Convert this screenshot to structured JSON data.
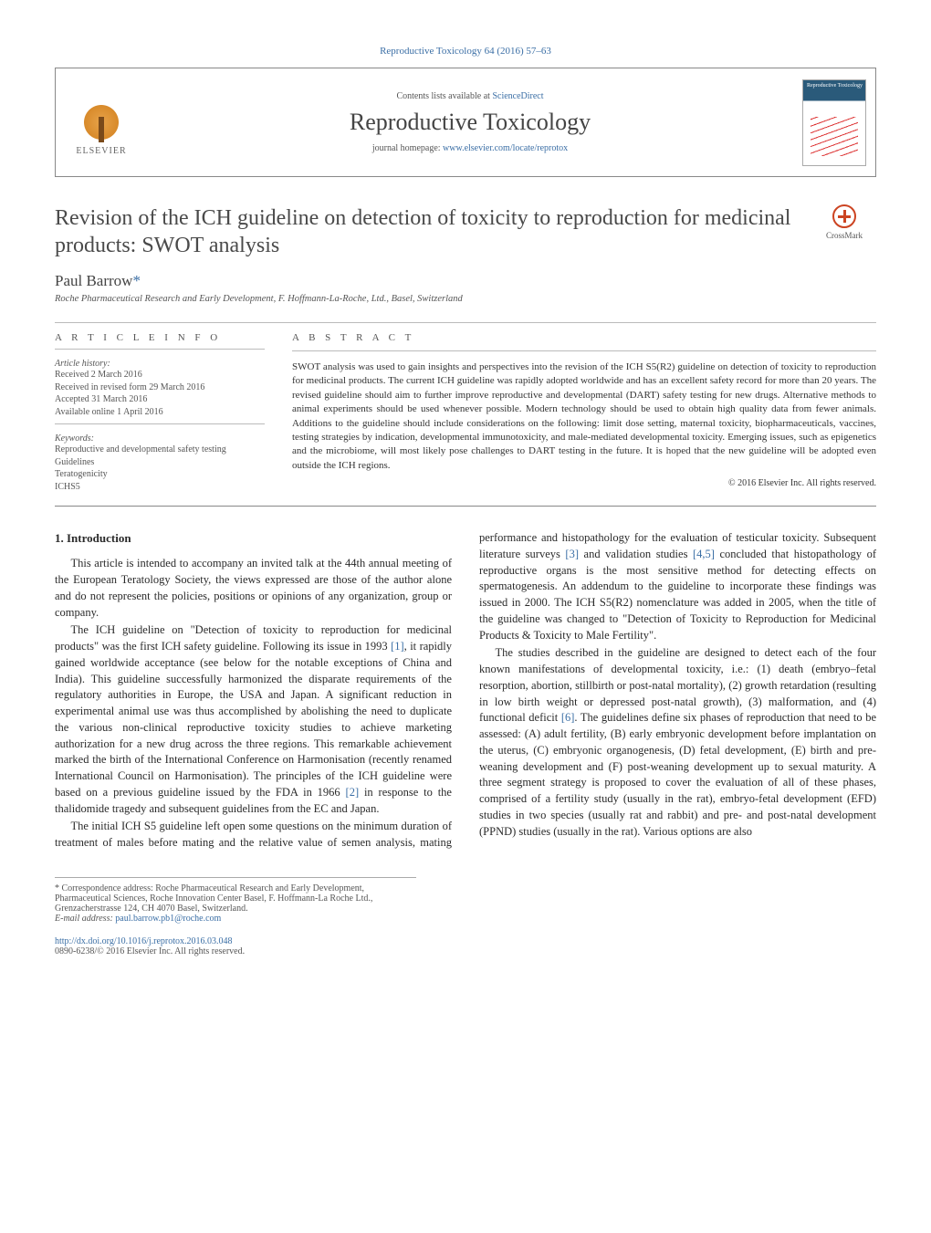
{
  "journal_ref": "Reproductive Toxicology 64 (2016) 57–63",
  "header": {
    "publisher_name": "ELSEVIER",
    "contents_prefix": "Contents lists available at ",
    "contents_link": "ScienceDirect",
    "journal_title": "Reproductive Toxicology",
    "homepage_prefix": "journal homepage: ",
    "homepage_link": "www.elsevier.com/locate/reprotox",
    "cover_label": "Reproductive Toxicology"
  },
  "crossmark_label": "CrossMark",
  "article": {
    "title": "Revision of the ICH guideline on detection of toxicity to reproduction for medicinal products: SWOT analysis",
    "author": "Paul Barrow",
    "author_marker": "*",
    "affiliation": "Roche Pharmaceutical Research and Early Development, F. Hoffmann-La-Roche, Ltd., Basel, Switzerland"
  },
  "info": {
    "heading": "A R T I C L E   I N F O",
    "history_label": "Article history:",
    "history": [
      "Received 2 March 2016",
      "Received in revised form 29 March 2016",
      "Accepted 31 March 2016",
      "Available online 1 April 2016"
    ],
    "keywords_label": "Keywords:",
    "keywords": [
      "Reproductive and developmental safety testing",
      "Guidelines",
      "Teratogenicity",
      "ICHS5"
    ]
  },
  "abstract": {
    "heading": "A B S T R A C T",
    "text": "SWOT analysis was used to gain insights and perspectives into the revision of the ICH S5(R2) guideline on detection of toxicity to reproduction for medicinal products. The current ICH guideline was rapidly adopted worldwide and has an excellent safety record for more than 20 years. The revised guideline should aim to further improve reproductive and developmental (DART) safety testing for new drugs. Alternative methods to animal experiments should be used whenever possible. Modern technology should be used to obtain high quality data from fewer animals. Additions to the guideline should include considerations on the following: limit dose setting, maternal toxicity, biopharmaceuticals, vaccines, testing strategies by indication, developmental immunotoxicity, and male-mediated developmental toxicity. Emerging issues, such as epigenetics and the microbiome, will most likely pose challenges to DART testing in the future. It is hoped that the new guideline will be adopted even outside the ICH regions.",
    "copyright": "© 2016 Elsevier Inc. All rights reserved."
  },
  "body": {
    "section_heading": "1. Introduction",
    "p1": "This article is intended to accompany an invited talk at the 44th annual meeting of the European Teratology Society, the views expressed are those of the author alone and do not represent the policies, positions or opinions of any organization, group or company.",
    "p2a": "The ICH guideline on \"Detection of toxicity to reproduction for medicinal products\" was the first ICH safety guideline. Following its issue in 1993 ",
    "p2_ref1": "[1]",
    "p2b": ", it rapidly gained worldwide acceptance (see below for the notable exceptions of China and India). This guideline successfully harmonized the disparate requirements of the regulatory authorities in Europe, the USA and Japan. A significant reduction in experimental animal use was thus accomplished by abolishing the need to duplicate the various non-clinical reproductive toxicity studies to achieve marketing authorization for a new drug across the three regions. This remarkable achievement marked the birth of the International Conference on Harmonisation (recently renamed International Council on Harmonisation). The principles of the ICH guideline were based on a previous guideline issued by the FDA in 1966 ",
    "p2_ref2": "[2]",
    "p2c": " in response to the thalidomide tragedy and subsequent guidelines from the EC and Japan.",
    "p3a": "The initial ICH S5 guideline left open some questions on the minimum duration of treatment of males before mating and the relative value of semen analysis, mating performance and histopathology for the evaluation of testicular toxicity. Subsequent literature surveys ",
    "p3_ref3": "[3]",
    "p3b": " and validation studies ",
    "p3_ref45": "[4,5]",
    "p3c": " concluded that histopathology of reproductive organs is the most sensitive method for detecting effects on spermatogenesis. An addendum to the guideline to incorporate these findings was issued in 2000. The ICH S5(R2) nomenclature was added in 2005, when the title of the guideline was changed to \"Detection of Toxicity to Reproduction for Medicinal Products & Toxicity to Male Fertility\".",
    "p4a": "The studies described in the guideline are designed to detect each of the four known manifestations of developmental toxicity, i.e.: (1) death (embryo–fetal resorption, abortion, stillbirth or post-natal mortality), (2) growth retardation (resulting in low birth weight or depressed post-natal growth), (3) malformation, and (4) functional deficit ",
    "p4_ref6": "[6]",
    "p4b": ". The guidelines define six phases of reproduction that need to be assessed: (A) adult fertility, (B) early embryonic development before implantation on the uterus, (C) embryonic organogenesis, (D) fetal development, (E) birth and pre-weaning development and (F) post-weaning development up to sexual maturity. A three segment strategy is proposed to cover the evaluation of all of these phases, comprised of a fertility study (usually in the rat), embryo-fetal development (EFD) studies in two species (usually rat and rabbit) and pre- and post-natal development (PPND) studies (usually in the rat). Various options are also"
  },
  "footnote": {
    "corr_label": "* Correspondence address: Roche Pharmaceutical Research and Early Development, Pharmaceutical Sciences, Roche Innovation Center Basel, F. Hoffmann-La Roche Ltd., Grenzacherstrasse 124, CH 4070 Basel, Switzerland.",
    "email_label": "E-mail address: ",
    "email": "paul.barrow.pb1@roche.com"
  },
  "doi": {
    "url": "http://dx.doi.org/10.1016/j.reprotox.2016.03.048",
    "issn_line": "0890-6238/© 2016 Elsevier Inc. All rights reserved."
  },
  "colors": {
    "link": "#3a6ea5",
    "text": "#333333",
    "rule": "#bbbbbb"
  }
}
